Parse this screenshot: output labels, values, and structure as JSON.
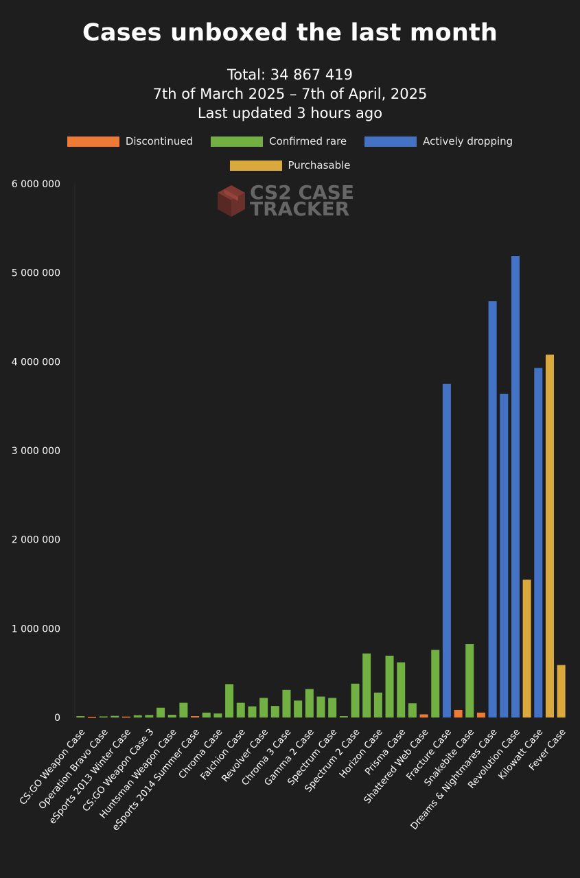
{
  "header": {
    "title": "Cases unboxed the last month",
    "total": "Total: 34 867 419",
    "range": "7th of March 2025 – 7th of April, 2025",
    "updated": "Last updated 3 hours ago"
  },
  "legend": [
    {
      "label": "Discontinued",
      "color": "#ee7b35"
    },
    {
      "label": "Confirmed rare",
      "color": "#73b043"
    },
    {
      "label": "Actively dropping",
      "color": "#4472c4"
    },
    {
      "label": "Purchasable",
      "color": "#d9a93e"
    }
  ],
  "watermark": {
    "line1": "CS2 CASE",
    "line2": "TRACKER",
    "icon": "box-icon"
  },
  "chart_data": {
    "type": "bar",
    "ylim": [
      0,
      6000000
    ],
    "yticks": [
      0,
      1000000,
      2000000,
      3000000,
      4000000,
      5000000,
      6000000
    ],
    "ytick_labels": [
      "0",
      "1 000 000",
      "2 000 000",
      "3 000 000",
      "4 000 000",
      "5 000 000",
      "6 000 000"
    ],
    "labeled_categories": [
      "CS:GO Weapon Case",
      "Operation Bravo Case",
      "eSports 2013 Winter Case",
      "CS:GO Weapon Case 3",
      "Huntsman Weapon Case",
      "eSports 2014 Summer Case",
      "Chroma Case",
      "Falchion Case",
      "Revolver Case",
      "Chroma 3 Case",
      "Gamma 2 Case",
      "Spectrum Case",
      "Spectrum 2 Case",
      "Horizon Case",
      "Prisma Case",
      "Shattered Web Case",
      "Fracture Case",
      "Snakebite Case",
      "Dreams & Nightmares Case",
      "Revolution Case",
      "Kilowatt Case",
      "Fever Case"
    ],
    "bars": [
      {
        "value": 15000,
        "group": "Confirmed rare"
      },
      {
        "value": 8000,
        "group": "Discontinued"
      },
      {
        "value": 12000,
        "group": "Confirmed rare"
      },
      {
        "value": 18000,
        "group": "Confirmed rare"
      },
      {
        "value": 10000,
        "group": "Discontinued"
      },
      {
        "value": 25000,
        "group": "Confirmed rare"
      },
      {
        "value": 28000,
        "group": "Confirmed rare"
      },
      {
        "value": 110000,
        "group": "Confirmed rare"
      },
      {
        "value": 30000,
        "group": "Confirmed rare"
      },
      {
        "value": 165000,
        "group": "Confirmed rare"
      },
      {
        "value": 15000,
        "group": "Discontinued"
      },
      {
        "value": 55000,
        "group": "Confirmed rare"
      },
      {
        "value": 45000,
        "group": "Confirmed rare"
      },
      {
        "value": 375000,
        "group": "Confirmed rare"
      },
      {
        "value": 165000,
        "group": "Confirmed rare"
      },
      {
        "value": 125000,
        "group": "Confirmed rare"
      },
      {
        "value": 220000,
        "group": "Confirmed rare"
      },
      {
        "value": 130000,
        "group": "Confirmed rare"
      },
      {
        "value": 310000,
        "group": "Confirmed rare"
      },
      {
        "value": 190000,
        "group": "Confirmed rare"
      },
      {
        "value": 320000,
        "group": "Confirmed rare"
      },
      {
        "value": 235000,
        "group": "Confirmed rare"
      },
      {
        "value": 220000,
        "group": "Confirmed rare"
      },
      {
        "value": 15000,
        "group": "Confirmed rare"
      },
      {
        "value": 380000,
        "group": "Confirmed rare"
      },
      {
        "value": 720000,
        "group": "Confirmed rare"
      },
      {
        "value": 280000,
        "group": "Confirmed rare"
      },
      {
        "value": 695000,
        "group": "Confirmed rare"
      },
      {
        "value": 620000,
        "group": "Confirmed rare"
      },
      {
        "value": 160000,
        "group": "Confirmed rare"
      },
      {
        "value": 35000,
        "group": "Discontinued"
      },
      {
        "value": 760000,
        "group": "Confirmed rare"
      },
      {
        "value": 3750000,
        "group": "Actively dropping"
      },
      {
        "value": 85000,
        "group": "Discontinued"
      },
      {
        "value": 825000,
        "group": "Confirmed rare"
      },
      {
        "value": 55000,
        "group": "Discontinued"
      },
      {
        "value": 4680000,
        "group": "Actively dropping"
      },
      {
        "value": 3640000,
        "group": "Actively dropping"
      },
      {
        "value": 5190000,
        "group": "Actively dropping"
      },
      {
        "value": 1550000,
        "group": "Purchasable"
      },
      {
        "value": 3930000,
        "group": "Actively dropping"
      },
      {
        "value": 4080000,
        "group": "Purchasable"
      },
      {
        "value": 590000,
        "group": "Purchasable"
      }
    ]
  }
}
